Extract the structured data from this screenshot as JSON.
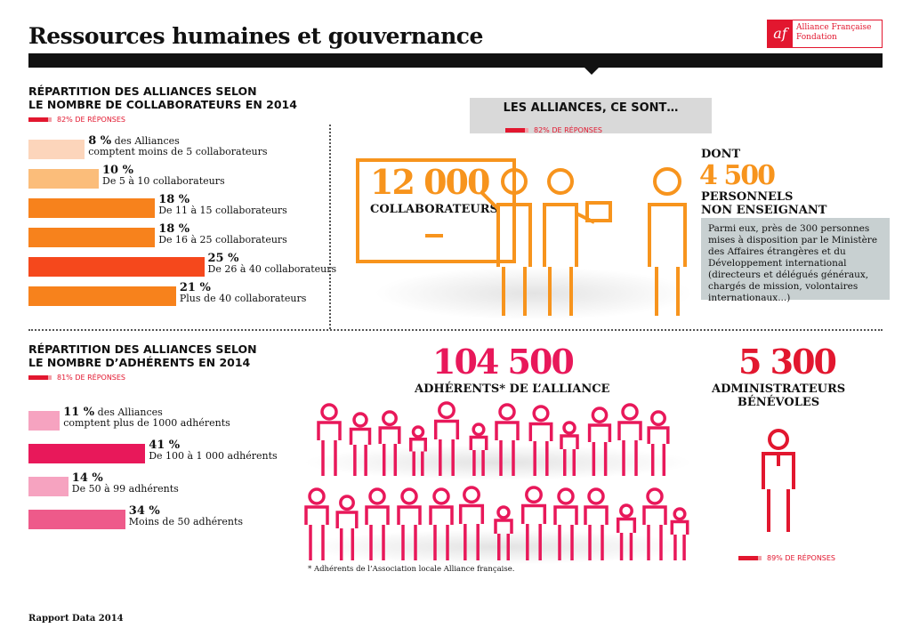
{
  "header": {
    "title": "Ressources humaines et gouvernance",
    "logo": {
      "mark": "af",
      "line1": "Alliance Française",
      "line2": "Fondation"
    }
  },
  "colors": {
    "accent": "#e2172f",
    "orange": "#f7941d",
    "pink": "#e8185a"
  },
  "collab": {
    "title1": "RÉPARTITION DES ALLIANCES SELON",
    "title2": "LE NOMBRE DE COLLABORATEURS EN 2014",
    "responses": "82% DE RÉPONSES",
    "bars": [
      {
        "pct": "8 %",
        "extra": " des Alliances",
        "label": "comptent moins de 5 collaborateurs",
        "value": 8,
        "color": "#fcd5bb"
      },
      {
        "pct": "10 %",
        "extra": "",
        "label": "De 5 à 10 collaborateurs",
        "value": 10,
        "color": "#fbbd7a"
      },
      {
        "pct": "18 %",
        "extra": "",
        "label": "De 11 à 15 collaborateurs",
        "value": 18,
        "color": "#f7821c"
      },
      {
        "pct": "18 %",
        "extra": "",
        "label": "De 16 à 25 collaborateurs",
        "value": 18,
        "color": "#f7821c"
      },
      {
        "pct": "25 %",
        "extra": "",
        "label": "De 26 à 40 collaborateurs",
        "value": 25,
        "color": "#f5481c"
      },
      {
        "pct": "21 %",
        "extra": "",
        "label": "Plus de 40 collaborateurs",
        "value": 21,
        "color": "#f7821c"
      }
    ]
  },
  "alliances": {
    "heading": "LES ALLIANCES, CE SONT…",
    "responses": "82% DE RÉPONSES",
    "collab_number": "12 000",
    "collab_label": "COLLABORATEURS",
    "dont": "DONT",
    "non_teach_number": "4 500",
    "non_teach_label1": "PERSONNELS",
    "non_teach_label2": "NON ENSEIGNANT",
    "note": "Parmi eux, près de 300 personnes mises à disposition par le Ministère des Affaires étrangères et du Développement international (directeurs et délégués généraux, chargés de mission, volontaires internationaux...)"
  },
  "adherents": {
    "title1": "RÉPARTITION DES ALLIANCES SELON",
    "title2": "LE NOMBRE D’ADHÉRENTS EN 2014",
    "responses": "81% DE RÉPONSES",
    "bars": [
      {
        "pct": "11 %",
        "extra": " des Alliances",
        "label": "comptent plus de 1000 adhérents",
        "value": 11,
        "color": "#f6a3c0"
      },
      {
        "pct": "41 %",
        "extra": "",
        "label": "De 100 à 1 000 adhérents",
        "value": 41,
        "color": "#e8185a"
      },
      {
        "pct": "14 %",
        "extra": "",
        "label": "De 50 à 99 adhérents",
        "value": 14,
        "color": "#f6a3c0"
      },
      {
        "pct": "34 %",
        "extra": "",
        "label": "Moins de 50 adhérents",
        "value": 34,
        "color": "#ee5a8a"
      }
    ]
  },
  "members": {
    "number": "104 500",
    "label": "ADHÉRENTS* DE L’ALLIANCE",
    "footnote": "* Adhérents de l’Association locale Alliance française."
  },
  "admins": {
    "number": "5 300",
    "label1": "ADMINISTRATEURS",
    "label2": "BÉNÉVOLES",
    "responses": "89% DE RÉPONSES"
  },
  "footer": "Rapport Data 2014",
  "chart_data": [
    {
      "type": "bar",
      "orientation": "horizontal",
      "title": "RÉPARTITION DES ALLIANCES SELON LE NOMBRE DE COLLABORATEURS EN 2014",
      "categories": [
        "moins de 5 collaborateurs",
        "De 5 à 10 collaborateurs",
        "De 11 à 15 collaborateurs",
        "De 16 à 25 collaborateurs",
        "De 26 à 40 collaborateurs",
        "Plus de 40 collaborateurs"
      ],
      "values": [
        8,
        10,
        18,
        18,
        25,
        21
      ],
      "unit": "%"
    },
    {
      "type": "bar",
      "orientation": "horizontal",
      "title": "RÉPARTITION DES ALLIANCES SELON LE NOMBRE D’ADHÉRENTS EN 2014",
      "categories": [
        "plus de 1000 adhérents",
        "De 100 à 1 000 adhérents",
        "De 50 à 99 adhérents",
        "Moins de 50 adhérents"
      ],
      "values": [
        11,
        41,
        14,
        34
      ],
      "unit": "%"
    }
  ]
}
